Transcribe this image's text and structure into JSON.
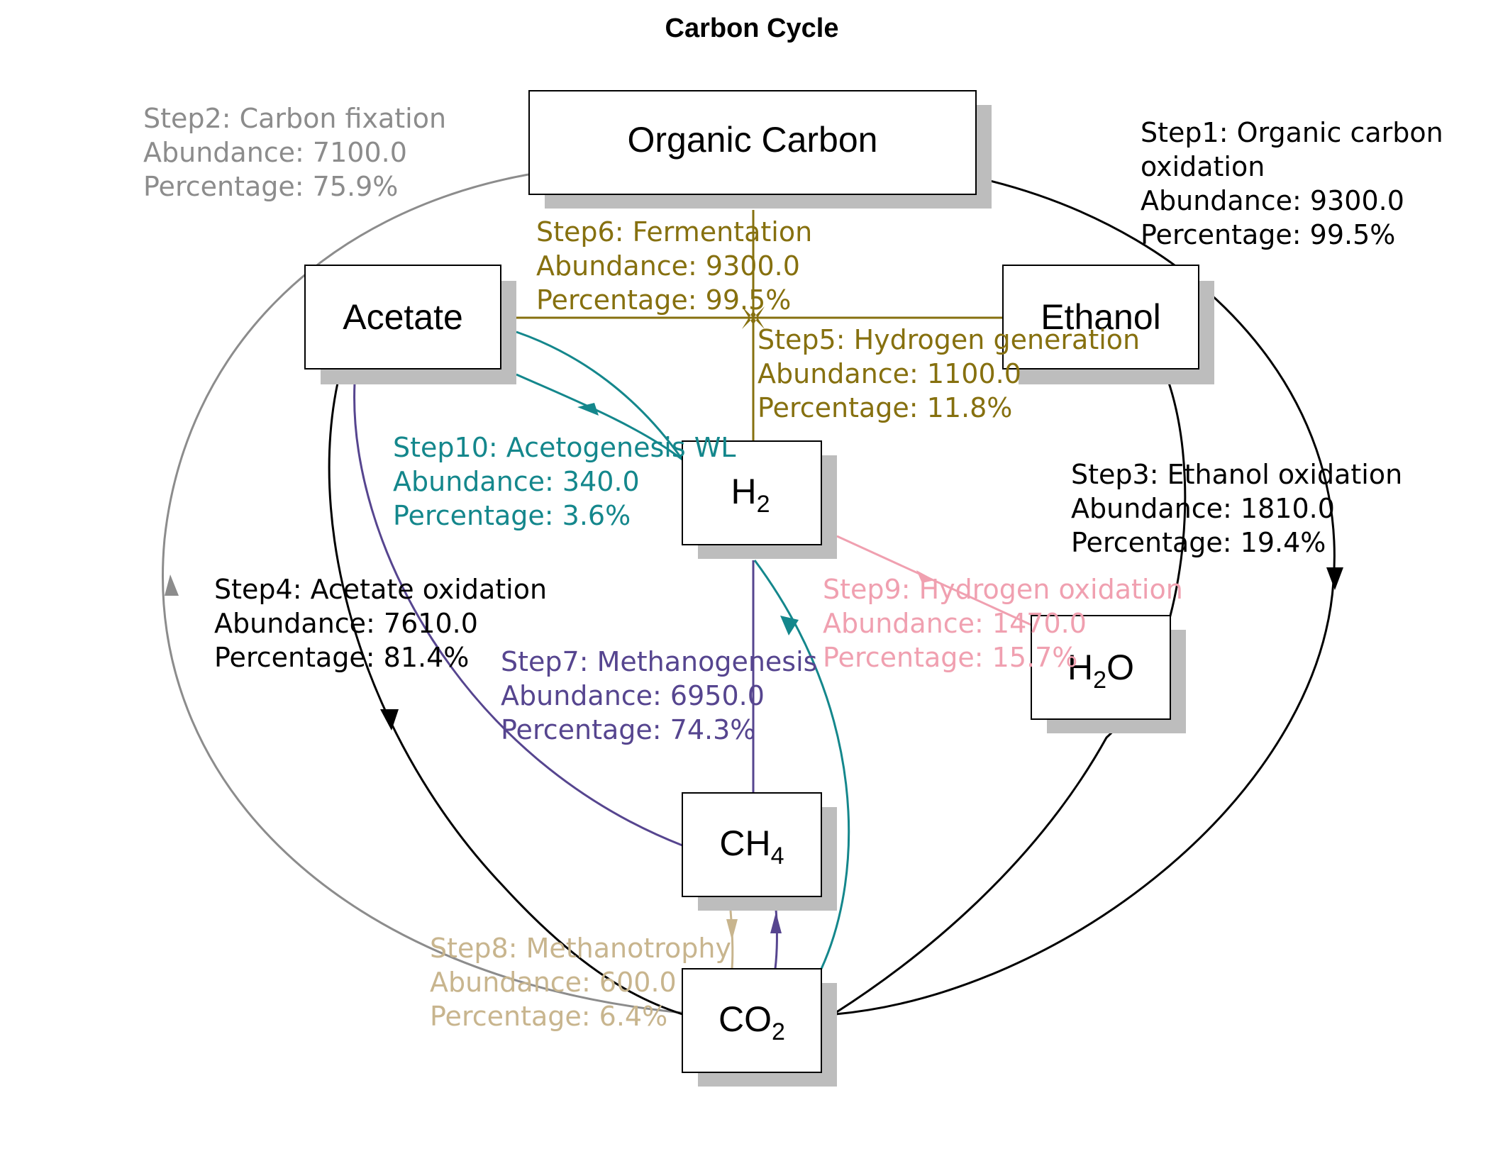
{
  "title": "Carbon Cycle",
  "colors": {
    "step1": "#000000",
    "step2": "#8c8c8c",
    "step3": "#000000",
    "step4": "#000000",
    "step5": "#86700f",
    "step6": "#86700f",
    "step7": "#56458f",
    "step8": "#c8b58e",
    "step9": "#f0a0b0",
    "step10": "#14878c",
    "node_border": "#000000",
    "node_shadow": "#bdbdbd"
  },
  "nodes": {
    "organic_carbon": {
      "label": "Organic Carbon"
    },
    "acetate": {
      "label": "Acetate"
    },
    "ethanol": {
      "label": "Ethanol"
    },
    "h2": {
      "label": "H",
      "sub": "2",
      "suffix": ""
    },
    "h2o": {
      "label": "H",
      "sub": "2",
      "suffix": "O"
    },
    "ch4": {
      "label": "CH",
      "sub": "4",
      "suffix": ""
    },
    "co2": {
      "label": "CO",
      "sub": "2",
      "suffix": ""
    }
  },
  "steps": {
    "step1": {
      "line1": "Step1: Organic carbon",
      "line2": " oxidation",
      "line3": "Abundance: 9300.0",
      "line4": "Percentage: 99.5%"
    },
    "step2": {
      "line1": "Step2: Carbon fixation",
      "line2": "Abundance: 7100.0",
      "line3": "Percentage: 75.9%"
    },
    "step3": {
      "line1": "Step3: Ethanol oxidation",
      "line2": "Abundance: 1810.0",
      "line3": "Percentage: 19.4%"
    },
    "step4": {
      "line1": "Step4: Acetate oxidation",
      "line2": "Abundance: 7610.0",
      "line3": "Percentage: 81.4%"
    },
    "step5": {
      "line1": "Step5: Hydrogen generation",
      "line2": "Abundance: 1100.0",
      "line3": "Percentage: 11.8%"
    },
    "step6": {
      "line1": "Step6: Fermentation",
      "line2": "Abundance: 9300.0",
      "line3": "Percentage: 99.5%"
    },
    "step7": {
      "line1": "Step7: Methanogenesis",
      "line2": "Abundance: 6950.0",
      "line3": "Percentage: 74.3%"
    },
    "step8": {
      "line1": "Step8: Methanotrophy",
      "line2": "Abundance: 600.0",
      "line3": "Percentage: 6.4%"
    },
    "step9": {
      "line1": "Step9: Hydrogen oxidation",
      "line2": "Abundance: 1470.0",
      "line3": "Percentage: 15.7%"
    },
    "step10": {
      "line1": "Step10: Acetogenesis WL",
      "line2": "Abundance: 340.0",
      "line3": "Percentage: 3.6%"
    }
  }
}
